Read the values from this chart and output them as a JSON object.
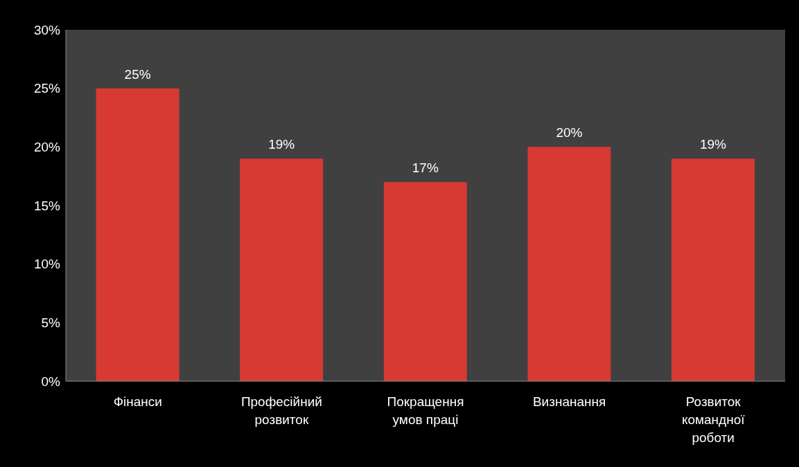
{
  "chart_data": {
    "type": "bar",
    "categories": [
      "Фінанси",
      "Професійний розвиток",
      "Покращення умов праці",
      "Визнанання",
      "Розвиток командної роботи"
    ],
    "values": [
      25,
      19,
      17,
      20,
      19
    ],
    "value_labels": [
      "25%",
      "19%",
      "17%",
      "20%",
      "19%"
    ],
    "color": "#d63a33",
    "ylim": [
      0,
      30
    ],
    "yticks": [
      {
        "value": 0,
        "label": "0%"
      },
      {
        "value": 5,
        "label": "5%"
      },
      {
        "value": 10,
        "label": "10%"
      },
      {
        "value": 15,
        "label": "15%"
      },
      {
        "value": 20,
        "label": "20%"
      },
      {
        "value": 25,
        "label": "25%"
      },
      {
        "value": 30,
        "label": "30%"
      }
    ],
    "grid": false,
    "legend": false
  }
}
